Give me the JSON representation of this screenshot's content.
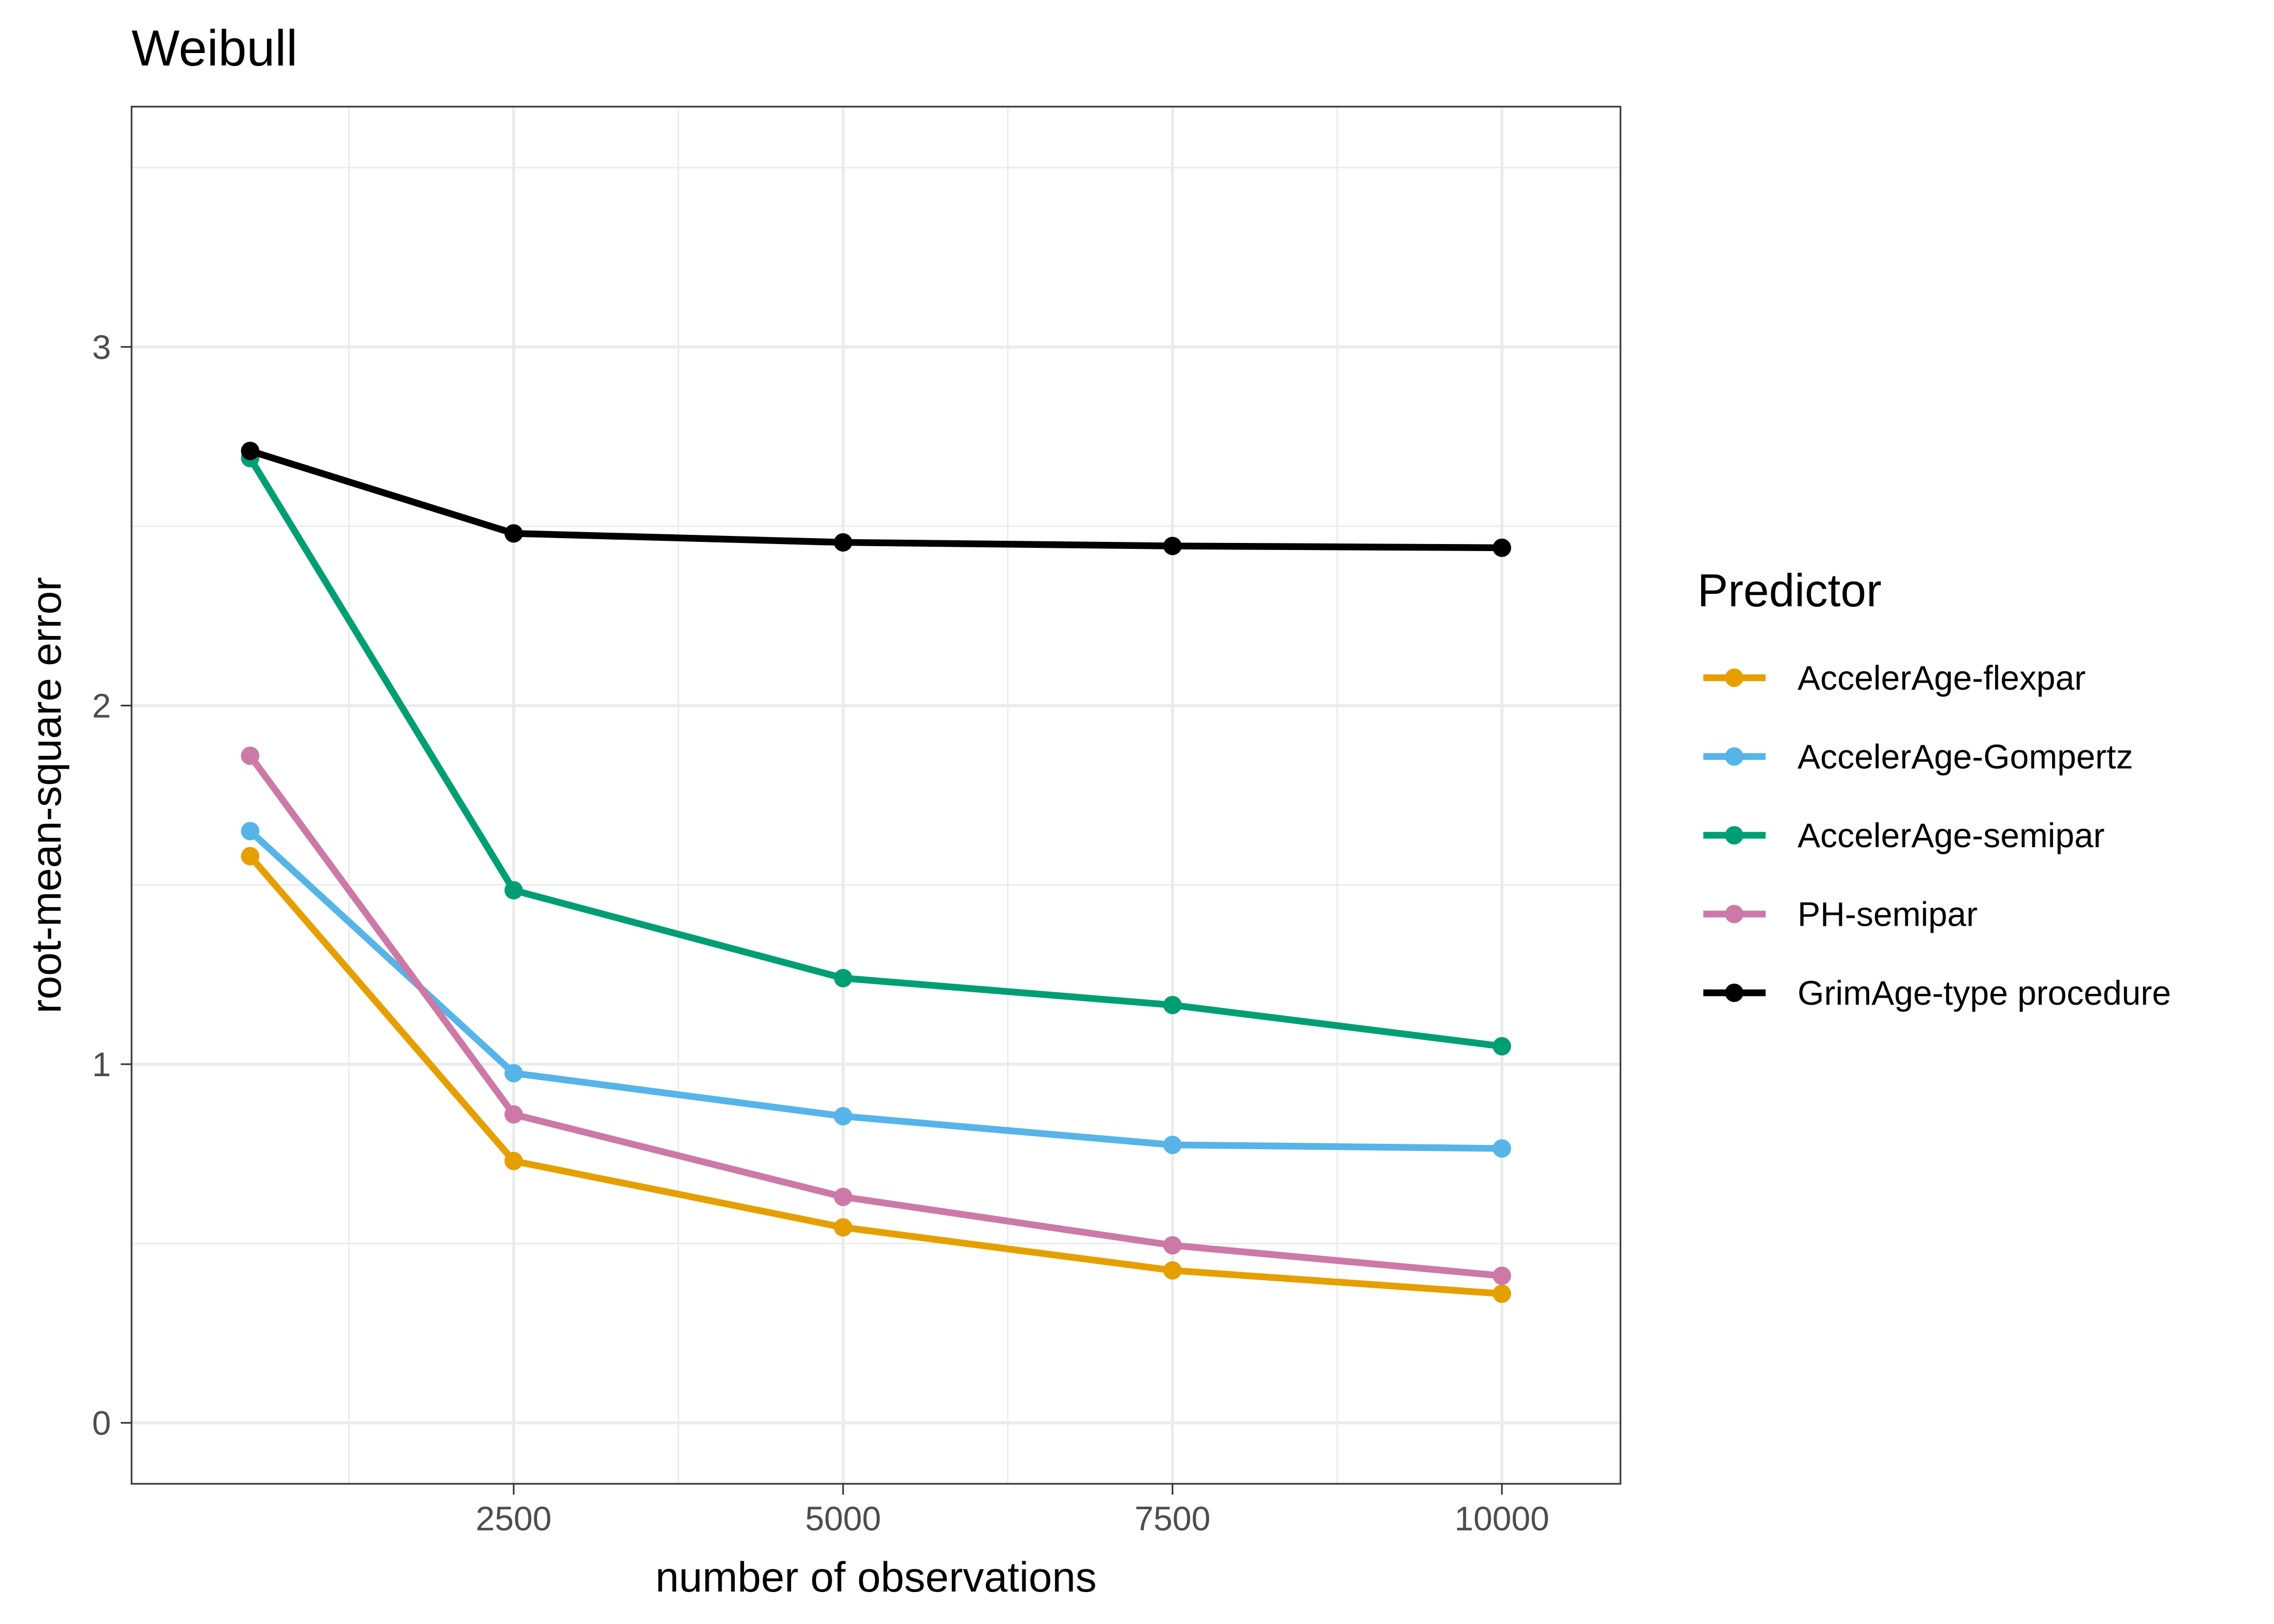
{
  "chart_data": {
    "type": "line",
    "title": "Weibull",
    "xlabel": "number of observations",
    "ylabel": "root-mean-square error",
    "xlim": [
      -400,
      10900
    ],
    "ylim": [
      -0.17,
      3.67
    ],
    "x_ticks": [
      2500,
      5000,
      7500,
      10000
    ],
    "x_tick_labels": [
      "2500",
      "5000",
      "7500",
      "10000"
    ],
    "x_minor": [
      1250,
      3750,
      6250,
      8750
    ],
    "y_ticks": [
      0,
      1,
      2,
      3
    ],
    "y_tick_labels": [
      "0",
      "1",
      "2",
      "3"
    ],
    "y_minor": [
      0.5,
      1.5,
      2.5,
      3.5
    ],
    "grid": true,
    "legend_title": "Predictor",
    "legend_position": "right",
    "x": [
      500,
      2500,
      5000,
      7500,
      10000
    ],
    "series": [
      {
        "name": "AccelerAge-flexpar",
        "color": "#E69F00",
        "values": [
          1.58,
          0.73,
          0.545,
          0.425,
          0.36
        ]
      },
      {
        "name": "AccelerAge-Gompertz",
        "color": "#56B4E9",
        "values": [
          1.65,
          0.975,
          0.855,
          0.775,
          0.765
        ]
      },
      {
        "name": "AccelerAge-semipar",
        "color": "#009E73",
        "values": [
          2.69,
          1.485,
          1.24,
          1.165,
          1.05
        ]
      },
      {
        "name": "PH-semipar",
        "color": "#CC79A7",
        "values": [
          1.86,
          0.86,
          0.63,
          0.495,
          0.41
        ]
      },
      {
        "name": "GrimAge-type procedure",
        "color": "#000000",
        "values": [
          2.71,
          2.48,
          2.455,
          2.445,
          2.44
        ]
      }
    ]
  }
}
